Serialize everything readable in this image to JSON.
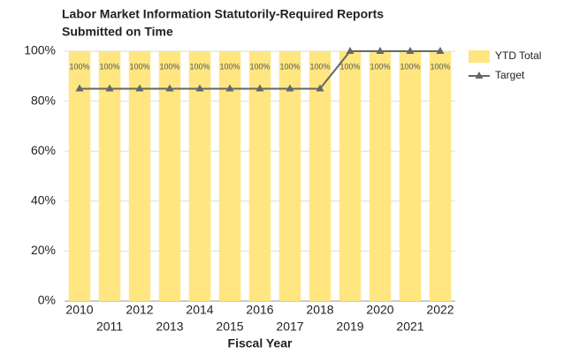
{
  "chart_data": {
    "type": "bar",
    "title": [
      "Labor Market Information Statutorily-Required Reports",
      "Submitted on Time"
    ],
    "x_label": "Fiscal Year",
    "categories": [
      "2010",
      "2011",
      "2012",
      "2013",
      "2014",
      "2015",
      "2016",
      "2017",
      "2018",
      "2019",
      "2020",
      "2021",
      "2022"
    ],
    "series": [
      {
        "name": "YTD Total",
        "type": "bar",
        "color": "#ffe680",
        "values": [
          100,
          100,
          100,
          100,
          100,
          100,
          100,
          100,
          100,
          100,
          100,
          100,
          100
        ],
        "value_labels": [
          "100%",
          "100%",
          "100%",
          "100%",
          "100%",
          "100%",
          "100%",
          "100%",
          "100%",
          "100%",
          "100%",
          "100%",
          "100%"
        ]
      },
      {
        "name": "Target",
        "type": "line",
        "color": "#666666",
        "values": [
          85,
          85,
          85,
          85,
          85,
          85,
          85,
          85,
          85,
          100,
          100,
          100,
          100
        ]
      }
    ],
    "ylim": [
      0,
      100
    ],
    "yticks": [
      {
        "value": 0,
        "label": "0%"
      },
      {
        "value": 20,
        "label": "20%"
      },
      {
        "value": 40,
        "label": "40%"
      },
      {
        "value": 60,
        "label": "60%"
      },
      {
        "value": 80,
        "label": "80%"
      },
      {
        "value": 100,
        "label": "100%"
      }
    ],
    "grid": true,
    "legend": "right"
  }
}
